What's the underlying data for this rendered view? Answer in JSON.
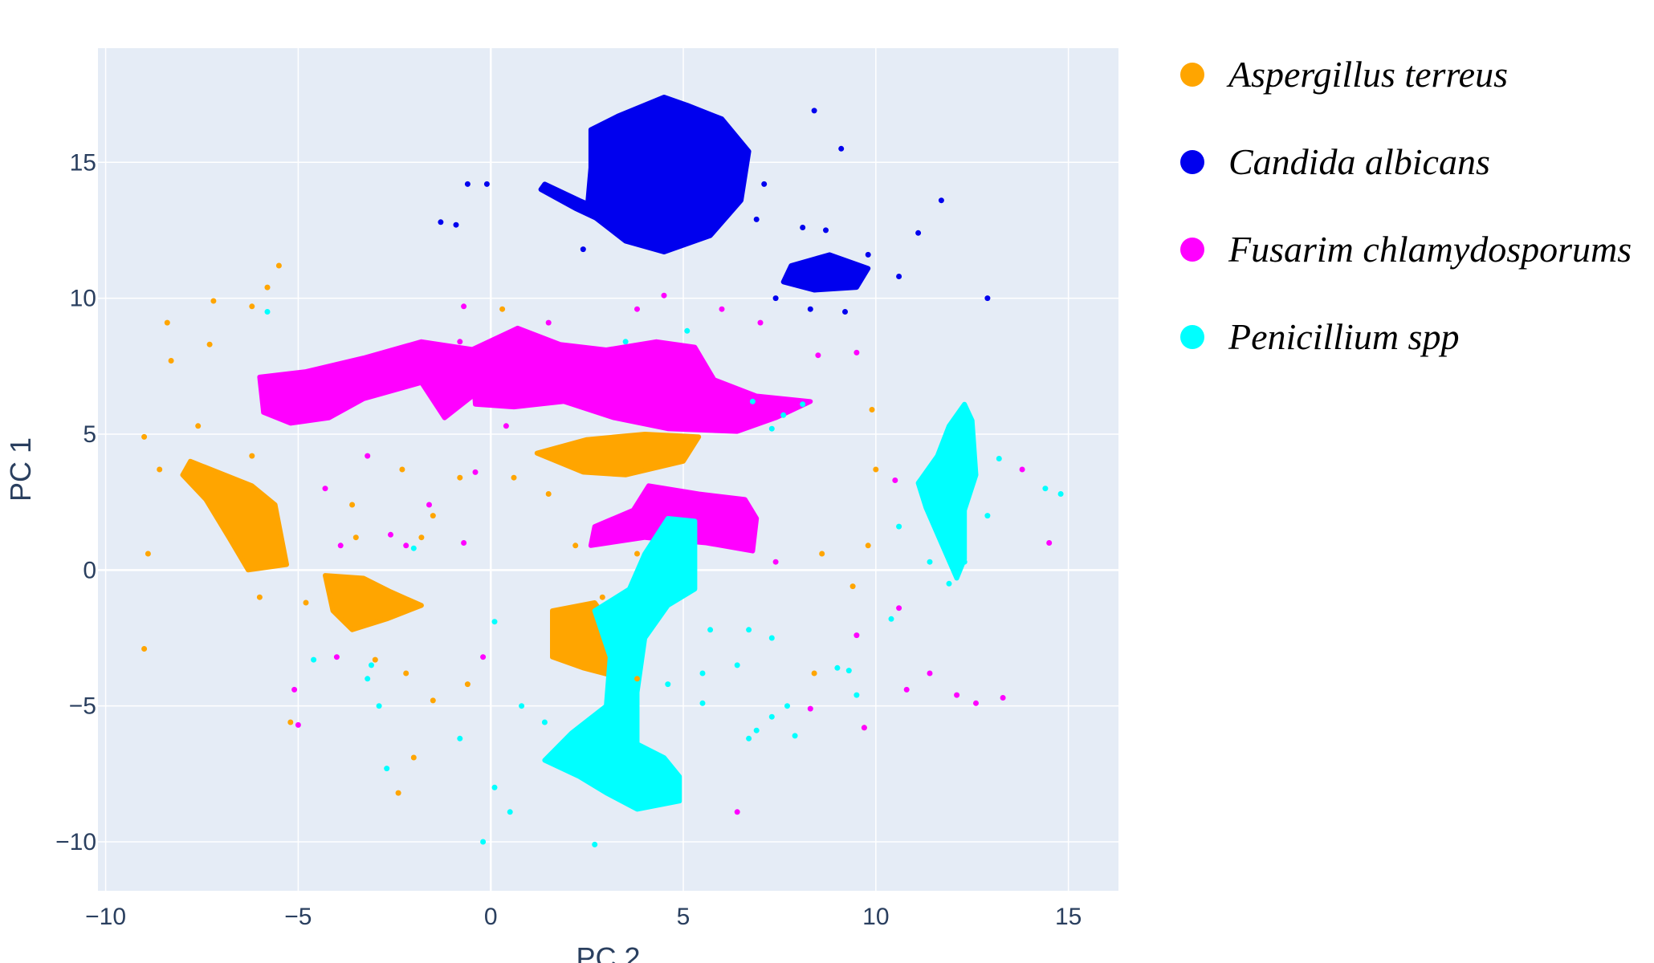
{
  "chart_data": {
    "type": "scatter",
    "xlabel": "PC 2",
    "ylabel": "PC 1",
    "xlim": [
      -10.2,
      16.3
    ],
    "ylim": [
      -11.8,
      19.2
    ],
    "xticks": [
      {
        "value": -10,
        "label": "−10"
      },
      {
        "value": -5,
        "label": "−5"
      },
      {
        "value": 0,
        "label": "0"
      },
      {
        "value": 5,
        "label": "5"
      },
      {
        "value": 10,
        "label": "10"
      },
      {
        "value": 15,
        "label": "15"
      }
    ],
    "yticks": [
      {
        "value": -10,
        "label": "−10"
      },
      {
        "value": -5,
        "label": "−5"
      },
      {
        "value": 0,
        "label": "0"
      },
      {
        "value": 5,
        "label": "5"
      },
      {
        "value": 10,
        "label": "10"
      },
      {
        "value": 15,
        "label": "15"
      }
    ],
    "legend_position": "right",
    "plot_background": "#e5ecf6",
    "series": [
      {
        "name": "Aspergillus terreus",
        "color": "#ffa500",
        "clusters": [
          {
            "shape": [
              [
                -7.8,
                4.0
              ],
              [
                -6.2,
                3.1
              ],
              [
                -5.6,
                2.4
              ],
              [
                -5.3,
                0.2
              ],
              [
                -6.3,
                0.0
              ],
              [
                -6.8,
                1.2
              ],
              [
                -7.4,
                2.6
              ],
              [
                -8.0,
                3.5
              ]
            ]
          },
          {
            "shape": [
              [
                -4.3,
                -0.2
              ],
              [
                -3.3,
                -0.3
              ],
              [
                -2.6,
                -0.8
              ],
              [
                -1.8,
                -1.3
              ],
              [
                -2.7,
                -1.8
              ],
              [
                -3.6,
                -2.2
              ],
              [
                -4.1,
                -1.5
              ]
            ]
          },
          {
            "shape": [
              [
                1.2,
                4.3
              ],
              [
                2.5,
                4.8
              ],
              [
                4.0,
                5.0
              ],
              [
                5.4,
                4.9
              ],
              [
                5.0,
                4.0
              ],
              [
                3.5,
                3.5
              ],
              [
                2.4,
                3.6
              ]
            ]
          },
          {
            "shape": [
              [
                1.6,
                -1.5
              ],
              [
                2.7,
                -1.2
              ],
              [
                3.2,
                -2.2
              ],
              [
                3.2,
                -3.9
              ],
              [
                2.4,
                -3.6
              ],
              [
                1.6,
                -3.2
              ]
            ]
          }
        ],
        "points": [
          [
            -5.5,
            11.2
          ],
          [
            -5.8,
            10.4
          ],
          [
            -6.2,
            9.7
          ],
          [
            -7.2,
            9.9
          ],
          [
            -8.4,
            9.1
          ],
          [
            -7.3,
            8.3
          ],
          [
            -8.3,
            7.7
          ],
          [
            -7.6,
            5.3
          ],
          [
            -8.6,
            3.7
          ],
          [
            -8.9,
            0.6
          ],
          [
            -6.0,
            -1.0
          ],
          [
            -4.8,
            -1.2
          ],
          [
            -9.0,
            -2.9
          ],
          [
            -5.2,
            -5.6
          ],
          [
            -2.4,
            -8.2
          ],
          [
            -2.0,
            -6.9
          ],
          [
            -1.5,
            -4.8
          ],
          [
            -0.6,
            -4.2
          ],
          [
            0.6,
            3.4
          ],
          [
            0.3,
            9.6
          ],
          [
            1.5,
            2.8
          ],
          [
            -3.0,
            -3.3
          ],
          [
            -2.2,
            -3.8
          ],
          [
            -1.8,
            1.2
          ],
          [
            -1.5,
            2.0
          ],
          [
            -0.8,
            3.4
          ],
          [
            -2.3,
            3.7
          ],
          [
            -3.6,
            2.4
          ],
          [
            -3.5,
            1.2
          ],
          [
            -6.2,
            4.2
          ],
          [
            -9.0,
            4.9
          ],
          [
            2.2,
            0.9
          ],
          [
            2.9,
            -1.0
          ],
          [
            3.8,
            -4.0
          ],
          [
            3.8,
            0.6
          ],
          [
            8.6,
            0.6
          ],
          [
            9.8,
            0.9
          ],
          [
            9.4,
            -0.6
          ],
          [
            10.0,
            3.7
          ],
          [
            9.9,
            5.9
          ],
          [
            8.4,
            -3.8
          ],
          [
            9.7,
            -5.8
          ]
        ]
      },
      {
        "name": "Candida albicans",
        "color": "#0000ee",
        "clusters": [
          {
            "shape": [
              [
                2.6,
                16.2
              ],
              [
                3.3,
                16.7
              ],
              [
                4.5,
                17.4
              ],
              [
                5.1,
                17.1
              ],
              [
                6.0,
                16.6
              ],
              [
                6.7,
                15.4
              ],
              [
                6.5,
                13.6
              ],
              [
                5.7,
                12.3
              ],
              [
                4.5,
                11.7
              ],
              [
                3.5,
                12.1
              ],
              [
                2.5,
                13.2
              ],
              [
                2.6,
                14.8
              ]
            ]
          },
          {
            "shape": [
              [
                7.8,
                11.2
              ],
              [
                8.8,
                11.6
              ],
              [
                9.8,
                11.1
              ],
              [
                9.5,
                10.4
              ],
              [
                8.4,
                10.3
              ],
              [
                7.6,
                10.6
              ]
            ]
          },
          {
            "shape": [
              [
                1.4,
                14.2
              ],
              [
                2.3,
                13.6
              ],
              [
                3.6,
                12.8
              ],
              [
                3.4,
                12.5
              ],
              [
                2.2,
                13.3
              ],
              [
                1.3,
                14.0
              ]
            ]
          }
        ],
        "points": [
          [
            -0.1,
            14.2
          ],
          [
            -0.9,
            12.7
          ],
          [
            -1.3,
            12.8
          ],
          [
            -0.6,
            14.2
          ],
          [
            2.4,
            11.8
          ],
          [
            8.4,
            16.9
          ],
          [
            9.1,
            15.5
          ],
          [
            7.1,
            14.2
          ],
          [
            6.9,
            12.9
          ],
          [
            8.7,
            12.5
          ],
          [
            8.1,
            12.6
          ],
          [
            9.8,
            11.6
          ],
          [
            11.1,
            12.4
          ],
          [
            11.7,
            13.6
          ],
          [
            12.9,
            10.0
          ],
          [
            10.6,
            10.8
          ],
          [
            8.3,
            9.6
          ],
          [
            9.2,
            9.5
          ],
          [
            7.4,
            10.0
          ]
        ]
      },
      {
        "name": "Fusarim chlamydosporums",
        "color": "#ff00ff",
        "clusters": [
          {
            "shape": [
              [
                -6.0,
                7.1
              ],
              [
                -4.8,
                7.3
              ],
              [
                -3.3,
                7.8
              ],
              [
                -1.8,
                8.4
              ],
              [
                -0.4,
                8.1
              ],
              [
                -0.3,
                6.6
              ],
              [
                -1.2,
                5.6
              ],
              [
                -1.8,
                6.9
              ],
              [
                -3.3,
                6.3
              ],
              [
                -4.2,
                5.6
              ],
              [
                -5.2,
                5.4
              ],
              [
                -5.9,
                5.8
              ]
            ]
          },
          {
            "shape": [
              [
                -0.5,
                8.1
              ],
              [
                0.7,
                8.9
              ],
              [
                1.8,
                8.3
              ],
              [
                3.0,
                8.1
              ],
              [
                4.3,
                8.4
              ],
              [
                5.3,
                8.2
              ],
              [
                5.8,
                7.0
              ],
              [
                6.9,
                6.4
              ],
              [
                8.3,
                6.2
              ],
              [
                7.4,
                5.6
              ],
              [
                6.4,
                5.1
              ],
              [
                4.6,
                5.2
              ],
              [
                3.2,
                5.6
              ],
              [
                1.9,
                6.2
              ],
              [
                0.6,
                6.0
              ],
              [
                -0.4,
                6.1
              ]
            ]
          },
          {
            "shape": [
              [
                4.1,
                3.1
              ],
              [
                5.4,
                2.8
              ],
              [
                6.6,
                2.6
              ],
              [
                6.9,
                1.9
              ],
              [
                6.8,
                0.7
              ],
              [
                5.6,
                1.0
              ],
              [
                4.0,
                1.2
              ],
              [
                2.6,
                0.9
              ],
              [
                2.7,
                1.6
              ],
              [
                3.7,
                2.2
              ]
            ]
          }
        ],
        "points": [
          [
            -0.7,
            9.7
          ],
          [
            1.5,
            9.1
          ],
          [
            3.8,
            9.6
          ],
          [
            4.5,
            10.1
          ],
          [
            6.0,
            9.6
          ],
          [
            7.0,
            9.1
          ],
          [
            8.5,
            7.9
          ],
          [
            9.5,
            8.0
          ],
          [
            -0.8,
            8.4
          ],
          [
            -0.4,
            3.6
          ],
          [
            -1.6,
            2.4
          ],
          [
            -2.6,
            1.3
          ],
          [
            -4.3,
            3.0
          ],
          [
            -3.2,
            4.2
          ],
          [
            -3.9,
            0.9
          ],
          [
            -2.2,
            0.9
          ],
          [
            -0.7,
            1.0
          ],
          [
            7.4,
            0.3
          ],
          [
            6.6,
            1.2
          ],
          [
            -5.0,
            -5.7
          ],
          [
            -5.1,
            -4.4
          ],
          [
            -4.0,
            -3.2
          ],
          [
            -0.2,
            -3.2
          ],
          [
            6.4,
            -8.9
          ],
          [
            9.5,
            -2.4
          ],
          [
            10.6,
            -1.4
          ],
          [
            8.3,
            -5.1
          ],
          [
            9.7,
            -5.8
          ],
          [
            10.8,
            -4.4
          ],
          [
            11.4,
            -3.8
          ],
          [
            12.1,
            -4.6
          ],
          [
            12.6,
            -4.9
          ],
          [
            13.3,
            -4.7
          ],
          [
            10.5,
            3.3
          ],
          [
            13.8,
            3.7
          ],
          [
            14.5,
            1.0
          ],
          [
            0.4,
            5.3
          ]
        ]
      },
      {
        "name": "Penicillium spp",
        "color": "#00ffff",
        "clusters": [
          {
            "shape": [
              [
                4.6,
                1.9
              ],
              [
                5.3,
                1.8
              ],
              [
                5.3,
                -0.7
              ],
              [
                4.6,
                -1.3
              ],
              [
                4.0,
                -2.5
              ],
              [
                3.8,
                -4.5
              ],
              [
                3.8,
                -6.4
              ],
              [
                4.5,
                -6.9
              ],
              [
                4.9,
                -7.6
              ],
              [
                4.9,
                -8.5
              ],
              [
                3.8,
                -8.8
              ],
              [
                3.0,
                -8.2
              ],
              [
                2.3,
                -7.6
              ],
              [
                1.4,
                -7.0
              ],
              [
                2.1,
                -6.0
              ],
              [
                3.0,
                -5.0
              ],
              [
                3.1,
                -3.2
              ],
              [
                2.7,
                -1.5
              ],
              [
                3.6,
                -0.7
              ],
              [
                4.0,
                0.6
              ]
            ]
          },
          {
            "shape": [
              [
                12.3,
                6.1
              ],
              [
                12.5,
                5.5
              ],
              [
                12.6,
                3.5
              ],
              [
                12.3,
                2.2
              ],
              [
                12.3,
                0.4
              ],
              [
                12.1,
                -0.3
              ],
              [
                11.7,
                1.0
              ],
              [
                11.3,
                2.3
              ],
              [
                11.1,
                3.2
              ],
              [
                11.6,
                4.2
              ],
              [
                11.9,
                5.3
              ]
            ]
          }
        ],
        "points": [
          [
            -5.8,
            9.5
          ],
          [
            -2.0,
            0.8
          ],
          [
            -3.1,
            -3.5
          ],
          [
            -4.6,
            -3.3
          ],
          [
            -3.2,
            -4.0
          ],
          [
            -2.9,
            -5.0
          ],
          [
            -2.7,
            -7.3
          ],
          [
            -0.8,
            -6.2
          ],
          [
            0.1,
            -8.0
          ],
          [
            -0.2,
            -10.0
          ],
          [
            0.5,
            -8.9
          ],
          [
            0.1,
            -1.9
          ],
          [
            0.8,
            -5.0
          ],
          [
            1.4,
            -5.6
          ],
          [
            2.7,
            -10.1
          ],
          [
            4.6,
            -4.2
          ],
          [
            5.5,
            -3.8
          ],
          [
            5.5,
            -4.9
          ],
          [
            6.4,
            -3.5
          ],
          [
            6.7,
            -2.2
          ],
          [
            7.3,
            -2.5
          ],
          [
            5.7,
            -2.2
          ],
          [
            6.9,
            -5.9
          ],
          [
            6.7,
            -6.2
          ],
          [
            7.3,
            -5.4
          ],
          [
            7.7,
            -5.0
          ],
          [
            7.9,
            -6.1
          ],
          [
            9.5,
            -4.6
          ],
          [
            9.3,
            -3.7
          ],
          [
            9.0,
            -3.6
          ],
          [
            10.4,
            -1.8
          ],
          [
            10.6,
            1.6
          ],
          [
            11.4,
            0.3
          ],
          [
            11.9,
            -0.5
          ],
          [
            12.3,
            0.3
          ],
          [
            13.2,
            4.1
          ],
          [
            12.9,
            2.0
          ],
          [
            14.4,
            3.0
          ],
          [
            14.8,
            2.8
          ],
          [
            6.8,
            6.2
          ],
          [
            7.6,
            5.7
          ],
          [
            3.5,
            8.4
          ],
          [
            5.1,
            8.8
          ],
          [
            8.1,
            6.1
          ],
          [
            7.3,
            5.2
          ]
        ]
      }
    ]
  }
}
